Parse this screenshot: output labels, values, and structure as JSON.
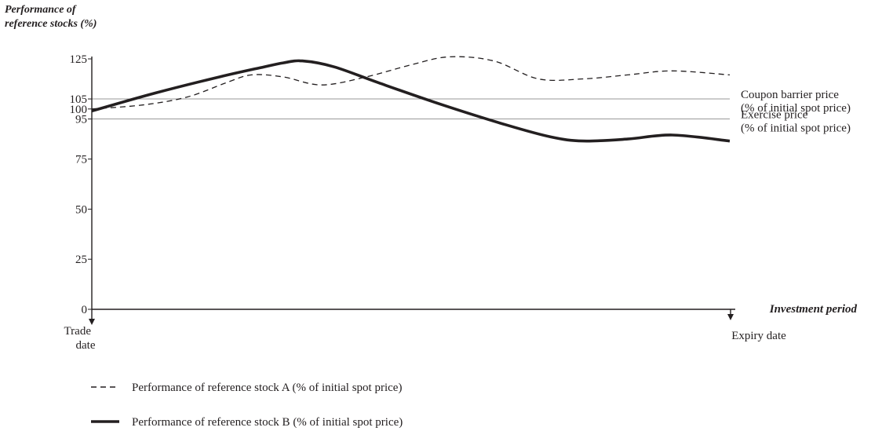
{
  "chart_data": {
    "type": "line",
    "ylabel_line1": "Performance of",
    "ylabel_line2": "reference stocks (%)",
    "xlabel": "Investment period",
    "ylim": [
      0,
      125
    ],
    "yticks": [
      0,
      25,
      50,
      75,
      95,
      100,
      105,
      125
    ],
    "x_start_label": [
      "Trade",
      "date"
    ],
    "x_end_label": "Expiry date",
    "reference_lines": [
      {
        "value": 105,
        "label": [
          "Coupon barrier price",
          "(% of initial spot price)"
        ]
      },
      {
        "value": 95,
        "label": [
          "Exercise price",
          "(% of initial spot price)"
        ]
      }
    ],
    "series": [
      {
        "name": "Performance of reference stock A (% of initial spot price)",
        "style": "dashed",
        "x": [
          0,
          0.08,
          0.15,
          0.21,
          0.25,
          0.3,
          0.36,
          0.43,
          0.5,
          0.56,
          0.63,
          0.7,
          0.77,
          0.84,
          0.91,
          1.0
        ],
        "values": [
          100,
          102,
          106,
          113,
          117,
          116,
          112,
          116,
          122,
          126,
          124,
          115,
          115,
          117,
          119,
          117
        ]
      },
      {
        "name": "Performance of reference stock B (% of initial spot price)",
        "style": "solid",
        "x": [
          0,
          0.1,
          0.2,
          0.27,
          0.3,
          0.33,
          0.38,
          0.45,
          0.55,
          0.65,
          0.72,
          0.77,
          0.84,
          0.91,
          1.0
        ],
        "values": [
          99,
          108,
          116,
          121,
          123,
          124,
          121,
          113,
          102,
          92,
          86,
          84,
          85,
          87,
          84
        ]
      }
    ],
    "colors": {
      "ink": "#231f20",
      "reference_line": "#9a9a9a"
    }
  }
}
